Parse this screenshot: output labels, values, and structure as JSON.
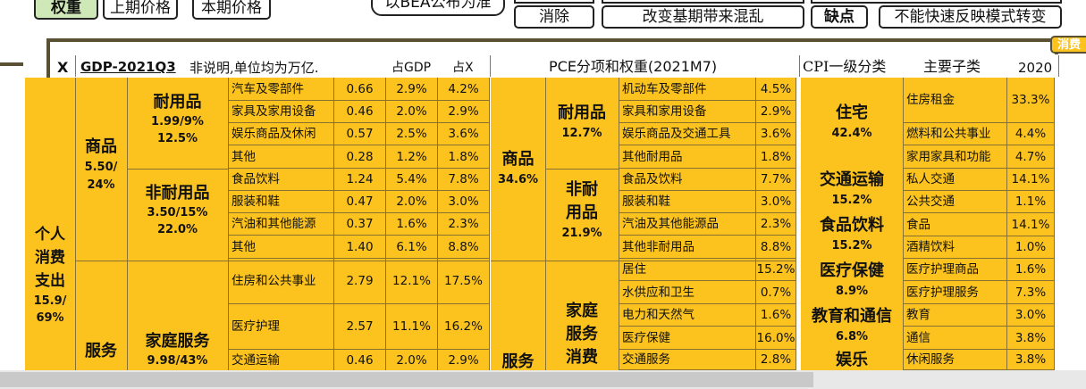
{
  "toolbar": {
    "weight": "权重",
    "prev_price": "上期价格",
    "cur_price": "本期价格",
    "bea_note": "以BEA公布为准",
    "eliminate": "消除",
    "base_change": "改变基期带来混乱",
    "drawback": "缺点",
    "cannot_reflect": "不能快速反映模式转变"
  },
  "side_tag": "消费",
  "header": {
    "x_mark": "X",
    "gdp_title": "GDP-2021Q3",
    "gdp_note": "非说明,单位均为万亿.",
    "pct_gdp": "占GDP",
    "pct_x": "占X",
    "pce_title": "PCE分项和权重(2021M7)",
    "cpi_title": "CPI一级分类",
    "cpi_sub": "主要子类",
    "cpi_year": "2020"
  },
  "gdp": {
    "personal": [
      "个人",
      "消费",
      "支出",
      "15.9/",
      "69%"
    ],
    "goods_label": [
      "商品",
      "5.50/",
      "24%"
    ],
    "services_label": "服务",
    "durable": [
      "耐用品",
      "1.99/9%",
      "12.5%"
    ],
    "nondurable": [
      "非耐用品",
      "3.50/15%",
      "22.0%"
    ],
    "household": [
      "家庭服务",
      "9.98/43%"
    ],
    "rows": [
      {
        "name": "汽车及零部件",
        "value": "0.66",
        "gdp": "2.9%",
        "x": "4.2%"
      },
      {
        "name": "家具及家用设备",
        "value": "0.46",
        "gdp": "2.0%",
        "x": "2.9%"
      },
      {
        "name": "娱乐商品及休闲",
        "value": "0.57",
        "gdp": "2.5%",
        "x": "3.6%"
      },
      {
        "name": "其他",
        "value": "0.28",
        "gdp": "1.2%",
        "x": "1.8%"
      },
      {
        "name": "食品饮料",
        "value": "1.24",
        "gdp": "5.4%",
        "x": "7.8%"
      },
      {
        "name": "服装和鞋",
        "value": "0.47",
        "gdp": "2.0%",
        "x": "3.0%"
      },
      {
        "name": "汽油和其他能源",
        "value": "0.37",
        "gdp": "1.6%",
        "x": "2.3%"
      },
      {
        "name": "其他",
        "value": "1.40",
        "gdp": "6.1%",
        "x": "8.8%"
      },
      {
        "name": "住房和公共事业",
        "value": "2.79",
        "gdp": "12.1%",
        "x": "17.5%"
      },
      {
        "name": "医疗护理",
        "value": "2.57",
        "gdp": "11.1%",
        "x": "16.2%"
      },
      {
        "name": "交通运输",
        "value": "0.46",
        "gdp": "2.0%",
        "x": "2.9%"
      }
    ]
  },
  "pce": {
    "goods": [
      "商品",
      "34.6%"
    ],
    "durable": [
      "耐用品",
      "12.7%"
    ],
    "nondurable": [
      "非耐",
      "用品",
      "21.9%"
    ],
    "services": "服务",
    "household": [
      "家庭",
      "服务",
      "消费"
    ],
    "rows": [
      {
        "name": "机动车及零部件",
        "pct": "4.5%"
      },
      {
        "name": "家具和家用设备",
        "pct": "2.9%"
      },
      {
        "name": "娱乐商品及交通工具",
        "pct": "3.6%"
      },
      {
        "name": "其他耐用品",
        "pct": "1.8%"
      },
      {
        "name": "食品及饮料",
        "pct": "7.7%"
      },
      {
        "name": "服装和鞋",
        "pct": "3.0%"
      },
      {
        "name": "汽油及其他能源品",
        "pct": "2.3%"
      },
      {
        "name": "其他非耐用品",
        "pct": "8.8%"
      },
      {
        "name": "居住",
        "pct": "15.2%"
      },
      {
        "name": "水供应和卫生",
        "pct": "0.7%"
      },
      {
        "name": "电力和天然气",
        "pct": "1.6%"
      },
      {
        "name": "医疗保健",
        "pct": "16.0%"
      },
      {
        "name": "交通服务",
        "pct": "2.8%"
      }
    ]
  },
  "cpi": {
    "housing": [
      "住宅",
      "42.4%"
    ],
    "transport": [
      "交通运输",
      "15.2%"
    ],
    "food": [
      "食品饮料",
      "15.2%"
    ],
    "medical": [
      "医疗保健",
      "8.9%"
    ],
    "education": [
      "教育和通信",
      "6.8%"
    ],
    "recreation": "娱乐",
    "rows": [
      {
        "name": "住房租金",
        "pct": "33.3%"
      },
      {
        "name": "燃料和公共事业",
        "pct": "4.4%"
      },
      {
        "name": "家用家具和功能",
        "pct": "4.7%"
      },
      {
        "name": "私人交通",
        "pct": "14.1%"
      },
      {
        "name": "公共交通",
        "pct": "1.1%"
      },
      {
        "name": "食品",
        "pct": "14.1%"
      },
      {
        "name": "酒精饮料",
        "pct": "1.0%"
      },
      {
        "name": "医疗护理商品",
        "pct": "1.6%"
      },
      {
        "name": "医疗护理服务",
        "pct": "7.3%"
      },
      {
        "name": "教育",
        "pct": "3.0%"
      },
      {
        "name": "通信",
        "pct": "3.8%"
      },
      {
        "name": "休闲服务",
        "pct": "3.8%"
      }
    ]
  }
}
